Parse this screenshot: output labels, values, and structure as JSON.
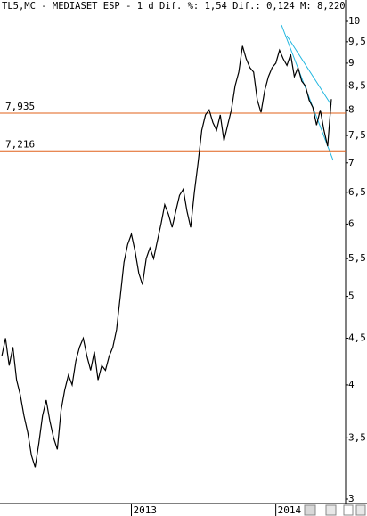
{
  "chart_data": {
    "type": "line",
    "title": "TL5,MC - MEDIASET ESP -  1 d Dif. %: 1,54 Dif.: 0,124 M: 8,220",
    "categories": [
      null,
      null,
      null,
      null,
      null,
      null,
      null,
      null,
      null,
      null,
      null,
      null,
      null,
      null,
      null,
      null,
      null,
      null,
      null,
      null,
      null,
      null,
      null,
      null,
      null,
      null,
      null,
      null,
      null,
      null,
      null,
      null,
      null,
      null,
      null,
      "2013",
      null,
      null,
      null,
      null,
      null,
      null,
      null,
      null,
      null,
      null,
      null,
      null,
      null,
      null,
      null,
      null,
      null,
      null,
      null,
      null,
      null,
      null,
      null,
      null,
      null,
      null,
      null,
      null,
      null,
      null,
      null,
      null,
      null,
      null,
      null,
      null,
      null,
      null,
      "2014",
      null,
      null,
      null,
      null,
      null,
      null,
      null,
      null,
      null,
      null,
      null,
      null,
      null,
      null,
      null
    ],
    "series": [
      {
        "name": "TL5,MC",
        "color": "#000000",
        "values": [
          4.3,
          4.5,
          4.2,
          4.4,
          4.05,
          3.9,
          3.7,
          3.55,
          3.35,
          3.25,
          3.45,
          3.7,
          3.85,
          3.65,
          3.5,
          3.4,
          3.75,
          3.95,
          4.1,
          4.0,
          4.25,
          4.4,
          4.5,
          4.3,
          4.15,
          4.35,
          4.05,
          4.2,
          4.15,
          4.3,
          4.4,
          4.6,
          5.0,
          5.45,
          5.7,
          5.85,
          5.6,
          5.3,
          5.15,
          5.5,
          5.65,
          5.5,
          5.75,
          6.0,
          6.3,
          6.15,
          5.95,
          6.2,
          6.45,
          6.55,
          6.2,
          5.95,
          6.5,
          7.0,
          7.6,
          7.9,
          8.0,
          7.75,
          7.6,
          7.9,
          7.4,
          7.7,
          8.0,
          8.5,
          8.8,
          9.4,
          9.1,
          8.9,
          8.8,
          8.2,
          7.95,
          8.4,
          8.7,
          8.9,
          9.0,
          9.3,
          9.1,
          8.95,
          9.2,
          8.7,
          8.9,
          8.6,
          8.5,
          8.2,
          8.05,
          7.7,
          8.0,
          7.6,
          7.3,
          8.22
        ]
      }
    ],
    "levels": [
      {
        "value": 7.935,
        "label": "7,935"
      },
      {
        "value": 7.216,
        "label": "7,216"
      }
    ],
    "level_color": "#e0601a",
    "ylim": [
      3,
      10
    ],
    "log_scale": true,
    "yticks": [
      {
        "value": 3,
        "label": "3"
      },
      {
        "value": 3.5,
        "label": "3,5"
      },
      {
        "value": 4,
        "label": "4"
      },
      {
        "value": 4.5,
        "label": "4,5"
      },
      {
        "value": 5,
        "label": "5"
      },
      {
        "value": 5.5,
        "label": "5,5"
      },
      {
        "value": 6,
        "label": "6"
      },
      {
        "value": 6.5,
        "label": "6,5"
      },
      {
        "value": 7,
        "label": "7"
      },
      {
        "value": 7.5,
        "label": "7,5"
      },
      {
        "value": 8,
        "label": "8"
      },
      {
        "value": 8.5,
        "label": "8,5"
      },
      {
        "value": 9,
        "label": "9"
      },
      {
        "value": 9.5,
        "label": "9,5"
      },
      {
        "value": 10,
        "label": "10"
      }
    ]
  }
}
